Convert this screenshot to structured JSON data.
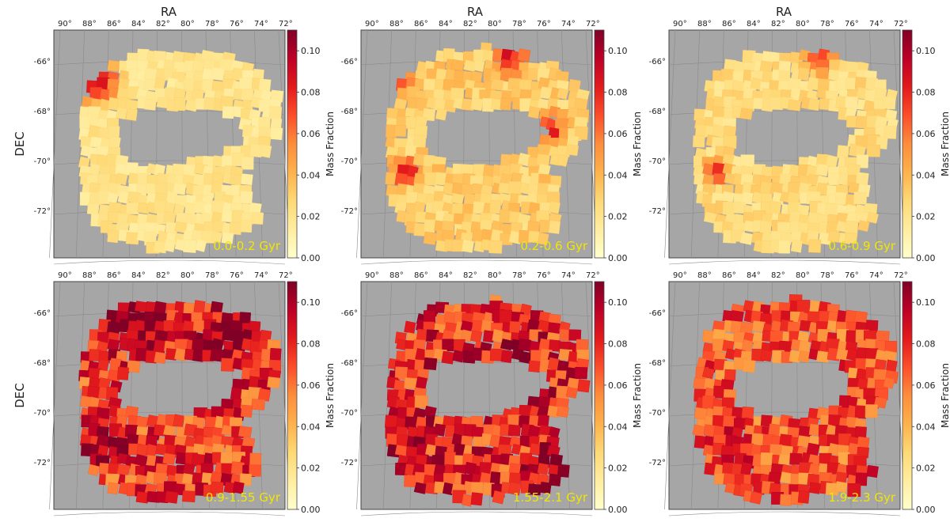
{
  "figure": {
    "xlabel": "RA",
    "ylabel": "DEC",
    "colorbar_label": "Mass Fraction",
    "colorbar_ticks": [
      "0.00",
      "0.02",
      "0.04",
      "0.06",
      "0.08",
      "0.10"
    ],
    "ra_ticks": [
      "90°",
      "88°",
      "86°",
      "84°",
      "82°",
      "80°",
      "78°",
      "76°",
      "74°",
      "72°"
    ],
    "dec_ticks": [
      "-66°",
      "-68°",
      "-70°",
      "-72°"
    ],
    "colormap": [
      "#ffffcc",
      "#ffeda0",
      "#fed976",
      "#feb24c",
      "#fd8d3c",
      "#fc4e2a",
      "#e31a1c",
      "#bd0026",
      "#800026"
    ],
    "background_color": "#a6a6a6",
    "label_color": "#f2e600"
  },
  "chart_data": [
    {
      "type": "heatmap",
      "title": "0.0-0.2 Gyr",
      "xlabel": "RA",
      "ylabel": "DEC",
      "colorbar_label": "Mass Fraction",
      "clim": [
        0,
        0.11
      ],
      "mean_mass_fraction": 0.02,
      "peak_mass_fraction": 0.1,
      "peak_region": "north-east (RA 84°-87°, DEC -66°)"
    },
    {
      "type": "heatmap",
      "title": "0.2-0.6 Gyr",
      "xlabel": "RA",
      "ylabel": "",
      "colorbar_label": "Mass Fraction",
      "clim": [
        0,
        0.11
      ],
      "mean_mass_fraction": 0.03,
      "peak_mass_fraction": 0.09,
      "peak_region": "north (RA 77°-79°, DEC -65.5°)"
    },
    {
      "type": "heatmap",
      "title": "0.6-0.9 Gyr",
      "xlabel": "RA",
      "ylabel": "",
      "colorbar_label": "Mass Fraction",
      "clim": [
        0,
        0.11
      ],
      "mean_mass_fraction": 0.025,
      "peak_mass_fraction": 0.08,
      "peak_region": "north (RA 77°-79°, DEC -65.5°)"
    },
    {
      "type": "heatmap",
      "title": "0.9-1.55 Gyr",
      "xlabel": "",
      "ylabel": "DEC",
      "colorbar_label": "Mass Fraction",
      "clim": [
        0,
        0.11
      ],
      "mean_mass_fraction": 0.075,
      "peak_mass_fraction": 0.11,
      "peak_region": "north (DEC -66° to -67°) and south-east (RA 84°-86°, DEC -71°)"
    },
    {
      "type": "heatmap",
      "title": "1.55-2.1 Gyr",
      "xlabel": "",
      "ylabel": "",
      "colorbar_label": "Mass Fraction",
      "clim": [
        0,
        0.11
      ],
      "mean_mass_fraction": 0.08,
      "peak_mass_fraction": 0.11,
      "peak_region": "south-west (RA 74°-76°, DEC -72.5°)"
    },
    {
      "type": "heatmap",
      "title": "1.9-2.3 Gyr",
      "xlabel": "",
      "ylabel": "",
      "colorbar_label": "Mass Fraction",
      "clim": [
        0,
        0.11
      ],
      "mean_mass_fraction": 0.068,
      "peak_mass_fraction": 0.1,
      "peak_region": "south-west (RA 73°-75°, DEC -72.8°)"
    }
  ]
}
